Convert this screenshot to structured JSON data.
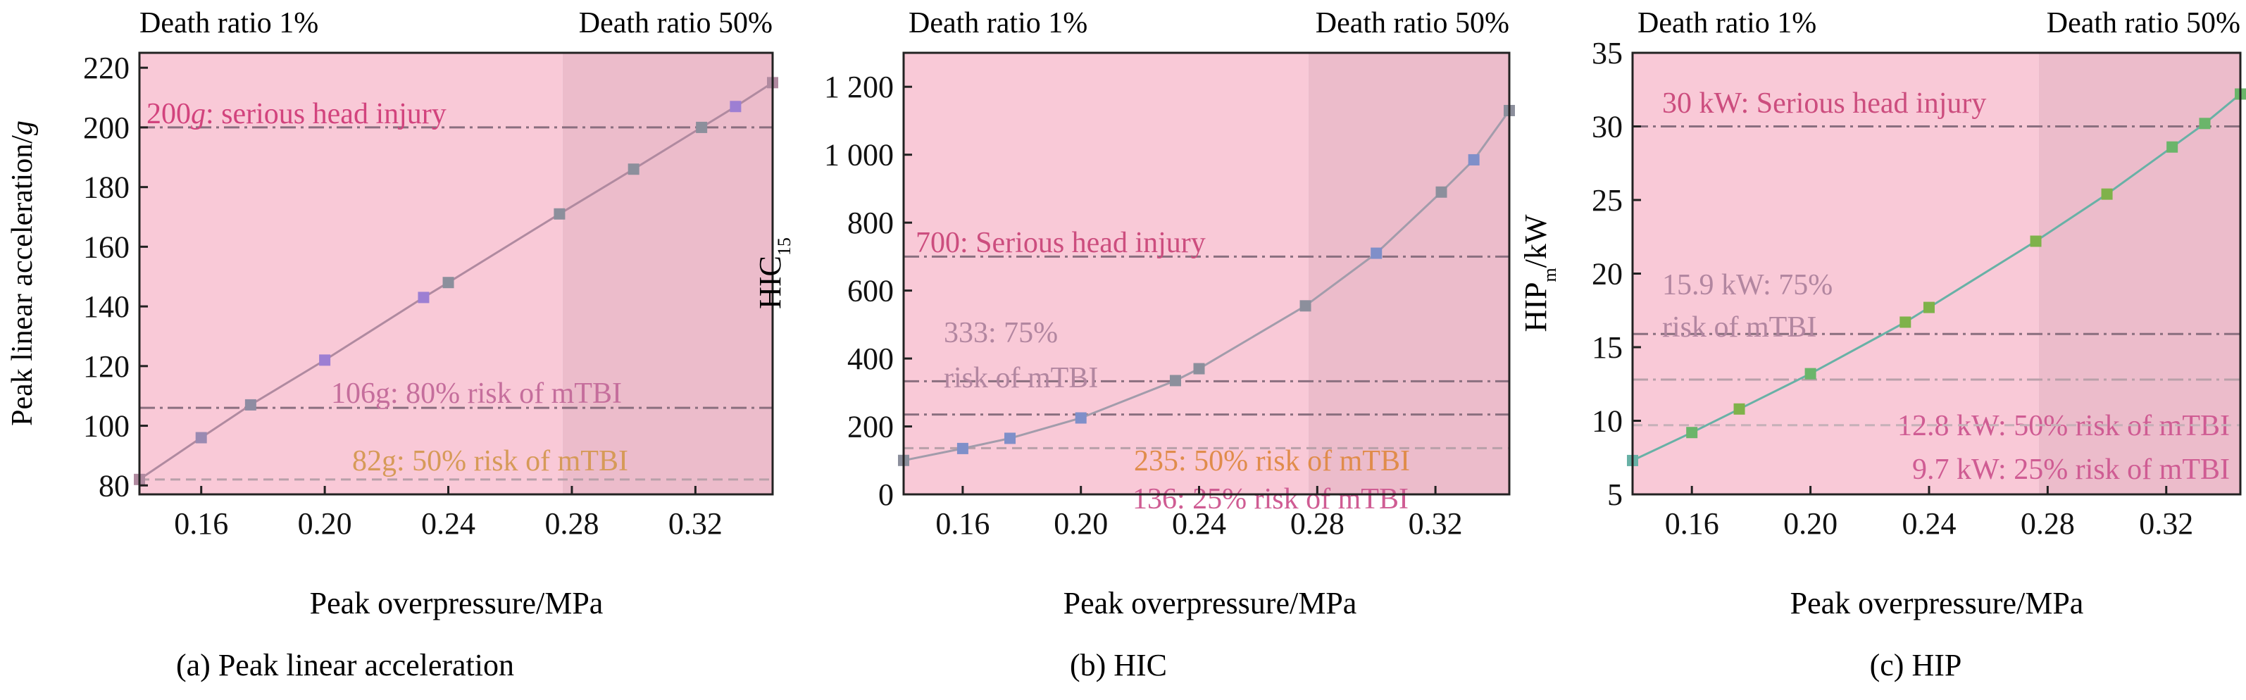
{
  "panels": [
    {
      "caption": "(a) Peak linear acceleration",
      "region_left_label": "Death ratio 1%",
      "region_right_label": "Death ratio 50%",
      "ylabel": "Peak linear acceleration/",
      "ylabel_unit": "g",
      "xlabel": "Peak overpressure/MPa"
    },
    {
      "caption": "(b) HIC",
      "region_left_label": "Death ratio 1%",
      "region_right_label": "Death ratio 50%",
      "ylabel": "HIC",
      "ylabel_sub": "15",
      "xlabel": "Peak overpressure/MPa"
    },
    {
      "caption": "(c) HIP",
      "region_left_label": "Death ratio 1%",
      "region_right_label": "Death ratio 50%",
      "ylabel_main": "HIP",
      "ylabel_sub": "m",
      "ylabel_tail": "/kW",
      "xlabel": "Peak overpressure/MPa"
    }
  ],
  "chart_data": [
    {
      "type": "line",
      "title": "",
      "xlabel": "Peak overpressure/MPa",
      "ylabel": "Peak linear acceleration/g",
      "xlim": [
        0.14,
        0.345
      ],
      "ylim": [
        77,
        225
      ],
      "xticks": [
        0.16,
        0.2,
        0.24,
        0.28,
        0.32
      ],
      "xtick_labels": [
        "0.16",
        "0.20",
        "0.24",
        "0.28",
        "0.32"
      ],
      "yticks": [
        80,
        100,
        120,
        140,
        160,
        180,
        200,
        220
      ],
      "ytick_labels": [
        "80",
        "100",
        "120",
        "140",
        "160",
        "180",
        "200",
        "220"
      ],
      "death_region_split_x": 0.277,
      "line_color": "#b08aa0",
      "series": [
        {
          "x": [
            0.14,
            0.16,
            0.176,
            0.2,
            0.232,
            0.24,
            0.276,
            0.3,
            0.322,
            0.333,
            0.345
          ],
          "y": [
            82,
            96,
            107,
            122,
            143,
            148,
            171,
            186,
            200,
            207,
            215
          ],
          "marker_colors": [
            "#b08aa0",
            "#9a8ab2",
            "#8e8ca2",
            "#9d7fd3",
            "#9d7fd3",
            "#8c8f9c",
            "#8c8f9c",
            "#8c8f9c",
            "#8c8f9c",
            "#9d7fd3",
            "#b08aa0"
          ]
        }
      ],
      "thresholds": [
        {
          "y": 200,
          "label_value": "200",
          "label_unit": "g",
          "label_rest": ": serious head injury",
          "style": "dashdot",
          "color": "#8a6f7f",
          "label_color": "#d2437d"
        },
        {
          "y": 106,
          "label_value": "106g: 80% risk of mTBI",
          "label_unit": "",
          "label_rest": "",
          "style": "dashdot",
          "color": "#8a6f7f",
          "label_color": "#c56e9c"
        },
        {
          "y": 82,
          "label_value": "82g: 50% risk of mTBI",
          "label_unit": "",
          "label_rest": "",
          "style": "dash",
          "color": "#b8a0a9",
          "label_color": "#d69a58"
        }
      ]
    },
    {
      "type": "line",
      "title": "",
      "xlabel": "Peak overpressure/MPa",
      "ylabel": "HIC15",
      "xlim": [
        0.14,
        0.345
      ],
      "ylim": [
        0,
        1300
      ],
      "xticks": [
        0.16,
        0.2,
        0.24,
        0.28,
        0.32
      ],
      "xtick_labels": [
        "0.16",
        "0.20",
        "0.24",
        "0.28",
        "0.32"
      ],
      "yticks": [
        0,
        200,
        400,
        600,
        800,
        1000,
        1200
      ],
      "ytick_labels": [
        "0",
        "200",
        "400",
        "600",
        "800",
        "1 000",
        "1 200"
      ],
      "death_region_split_x": 0.277,
      "line_color": "#a29cab",
      "series": [
        {
          "x": [
            0.14,
            0.16,
            0.176,
            0.2,
            0.232,
            0.24,
            0.276,
            0.3,
            0.322,
            0.333,
            0.345
          ],
          "y": [
            100,
            135,
            165,
            225,
            335,
            370,
            555,
            710,
            890,
            985,
            1130
          ],
          "marker_colors": [
            "#8c8f9c",
            "#7f8fc9",
            "#7f8fc9",
            "#7f8fc9",
            "#8c8f9c",
            "#8c8f9c",
            "#8c8f9c",
            "#7f8fc9",
            "#8c8f9c",
            "#7f8fc9",
            "#8c8f9c"
          ]
        }
      ],
      "thresholds": [
        {
          "y": 700,
          "label_value": "700: Serious head injury",
          "label_unit": "",
          "label_rest": "",
          "style": "dashdot",
          "color": "#8a6f7f",
          "label_color": "#cc4d7e"
        },
        {
          "y": 333,
          "label_value": "333: 75%",
          "label_unit": "",
          "label_rest": "risk of mTBI",
          "style": "dashdot",
          "color": "#8a6f7f",
          "label_color": "#b286a0"
        },
        {
          "y": 235,
          "label_value": "235: 50% risk of mTBI",
          "label_unit": "",
          "label_rest": "",
          "style": "dashdot",
          "color": "#8a6f7f",
          "label_color": "#e08c4b"
        },
        {
          "y": 136,
          "label_value": "136: 25% risk of mTBI",
          "label_unit": "",
          "label_rest": "",
          "style": "dash",
          "color": "#b8a0a9",
          "label_color": "#cf5c93"
        }
      ]
    },
    {
      "type": "line",
      "title": "",
      "xlabel": "Peak overpressure/MPa",
      "ylabel": "HIPm/kW",
      "xlim": [
        0.14,
        0.345
      ],
      "ylim": [
        5,
        35
      ],
      "xticks": [
        0.16,
        0.2,
        0.24,
        0.28,
        0.32
      ],
      "xtick_labels": [
        "0.16",
        "0.20",
        "0.24",
        "0.28",
        "0.32"
      ],
      "yticks": [
        5,
        10,
        15,
        20,
        25,
        30,
        35
      ],
      "ytick_labels": [
        "5",
        "10",
        "15",
        "20",
        "25",
        "30",
        "35"
      ],
      "death_region_split_x": 0.277,
      "line_color": "#68b1a6",
      "series": [
        {
          "x": [
            0.14,
            0.16,
            0.176,
            0.2,
            0.232,
            0.24,
            0.276,
            0.3,
            0.322,
            0.333,
            0.345
          ],
          "y": [
            7.3,
            9.2,
            10.8,
            13.2,
            16.7,
            17.7,
            22.2,
            25.4,
            28.6,
            30.2,
            32.2
          ],
          "marker_colors": [
            "#68b1a6",
            "#6bb56a",
            "#7fb24a",
            "#6bb56a",
            "#7fb24a",
            "#7fb24a",
            "#7fb24a",
            "#7fb24a",
            "#6bb56a",
            "#6bb56a",
            "#6bb56a"
          ]
        }
      ],
      "thresholds": [
        {
          "y": 30,
          "label_value": "30 kW: Serious head injury",
          "label_unit": "",
          "label_rest": "",
          "style": "dashdot",
          "color": "#8a6f7f",
          "label_color": "#cc4d7e"
        },
        {
          "y": 15.9,
          "label_value": "15.9 kW: 75%",
          "label_unit": "",
          "label_rest": "risk of mTBI",
          "style": "dashdot",
          "color": "#8a6f7f",
          "label_color": "#b286a0"
        },
        {
          "y": 12.8,
          "label_value": "12.8 kW: 50% risk of mTBI",
          "label_unit": "",
          "label_rest": "",
          "style": "dashdot",
          "color": "#b8a0a9",
          "label_color": "#cf5c93"
        },
        {
          "y": 9.7,
          "label_value": "9.7 kW: 25% risk of mTBI",
          "label_unit": "",
          "label_rest": "",
          "style": "dash",
          "color": "#c6b0b8",
          "label_color": "#cf5c93"
        }
      ]
    }
  ],
  "colors": {
    "region_left_fill": "#f9c9d7",
    "region_right_fill": "#ecbccb",
    "axis": "#222222",
    "text": "#111111"
  }
}
